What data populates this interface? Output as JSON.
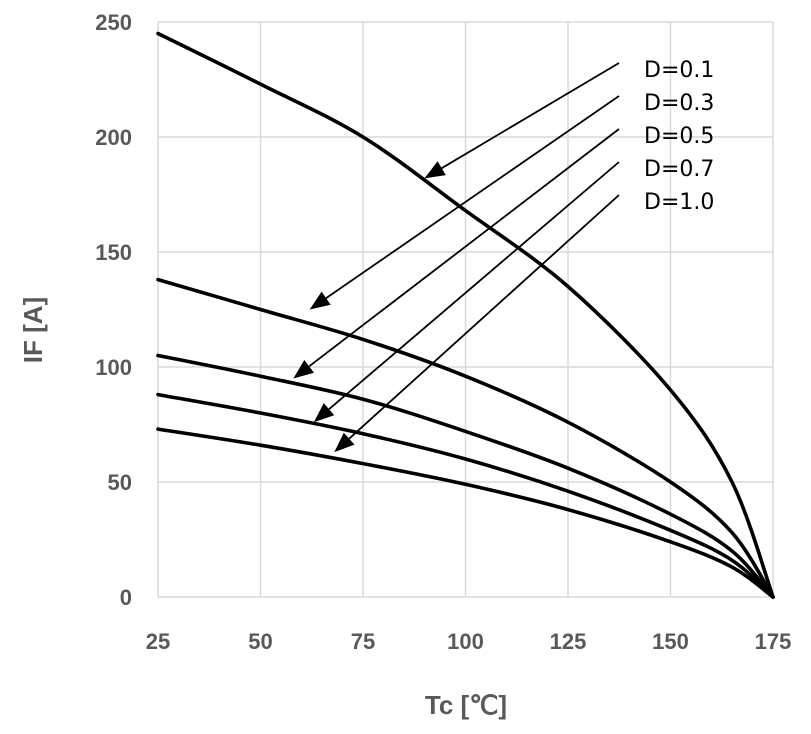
{
  "chart_data": {
    "type": "line",
    "xlabel": "Tc [℃]",
    "ylabel": "IF [A]",
    "xlim": [
      25,
      175
    ],
    "ylim": [
      0,
      250
    ],
    "xticks": [
      "25",
      "50",
      "75",
      "100",
      "125",
      "150",
      "175"
    ],
    "yticks": [
      "0",
      "50",
      "100",
      "150",
      "200",
      "250"
    ],
    "grid": true,
    "series": [
      {
        "name": "D=0.1",
        "x": [
          25,
          50,
          75,
          100,
          125,
          150,
          165,
          175
        ],
        "y": [
          245,
          223,
          200,
          168,
          135,
          90,
          50,
          0
        ],
        "pointer": {
          "x": 90,
          "y": 182
        }
      },
      {
        "name": "D=0.3",
        "x": [
          25,
          50,
          75,
          100,
          125,
          150,
          165,
          175
        ],
        "y": [
          138,
          125,
          112,
          96,
          76,
          50,
          28,
          0
        ],
        "pointer": {
          "x": 62,
          "y": 125
        }
      },
      {
        "name": "D=0.5",
        "x": [
          25,
          50,
          75,
          100,
          125,
          150,
          165,
          175
        ],
        "y": [
          105,
          96,
          86,
          72,
          56,
          36,
          20,
          0
        ],
        "pointer": {
          "x": 58,
          "y": 95
        }
      },
      {
        "name": "D=0.7",
        "x": [
          25,
          50,
          75,
          100,
          125,
          150,
          165,
          175
        ],
        "y": [
          88,
          80,
          71,
          60,
          46,
          29,
          16,
          0
        ],
        "pointer": {
          "x": 63,
          "y": 76
        }
      },
      {
        "name": "D=1.0",
        "x": [
          25,
          50,
          75,
          100,
          125,
          150,
          165,
          175
        ],
        "y": [
          73,
          66,
          58,
          49,
          38,
          24,
          13,
          0
        ],
        "pointer": {
          "x": 68,
          "y": 63
        }
      }
    ]
  }
}
